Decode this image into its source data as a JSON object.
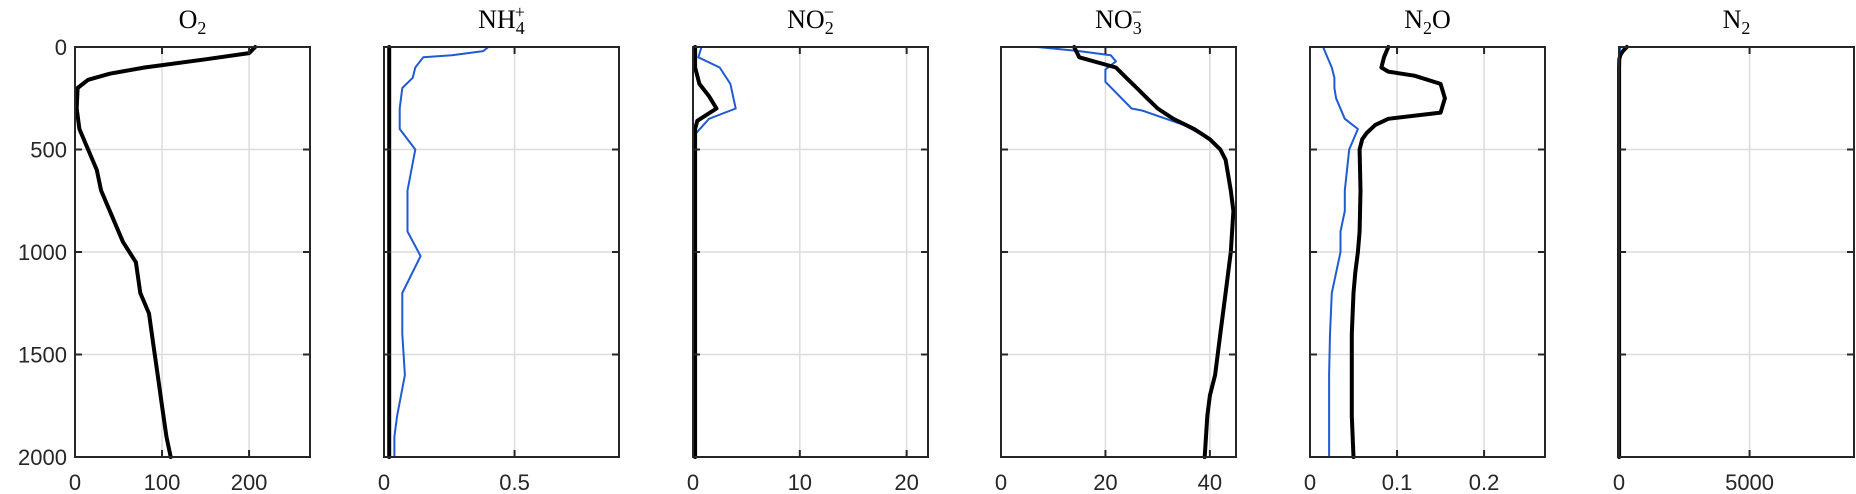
{
  "chart_data": [
    {
      "type": "line",
      "title": "O2",
      "xlim": [
        0,
        270
      ],
      "ylim": [
        0,
        2000
      ],
      "y_reversed": true,
      "grid": true,
      "xticks": [
        0,
        100,
        200
      ],
      "xtick_labels": [
        "0",
        "100",
        "200"
      ],
      "yticks": [
        0,
        500,
        1000,
        1500,
        2000
      ],
      "ytick_labels": [
        "0",
        "500",
        "1000",
        "1500",
        "2000"
      ],
      "series": [
        {
          "color": "#000000",
          "width": 4,
          "x": [
            207,
            200,
            150,
            80,
            40,
            15,
            3,
            2,
            5,
            15,
            25,
            30,
            35,
            45,
            55,
            70,
            75,
            85,
            90,
            95,
            100,
            105,
            110
          ],
          "y": [
            0,
            30,
            60,
            100,
            130,
            160,
            200,
            300,
            400,
            500,
            600,
            700,
            750,
            850,
            950,
            1050,
            1200,
            1300,
            1450,
            1600,
            1750,
            1900,
            2000
          ]
        }
      ]
    },
    {
      "type": "line",
      "title": "NH4+",
      "xlim": [
        0,
        0.9
      ],
      "ylim": [
        0,
        2000
      ],
      "y_reversed": true,
      "grid": true,
      "xticks": [
        0,
        0.5
      ],
      "xtick_labels": [
        "0",
        "0.5"
      ],
      "series": [
        {
          "color": "#1f5bd1",
          "width": 2,
          "x": [
            0.4,
            0.38,
            0.26,
            0.15,
            0.12,
            0.11,
            0.07,
            0.06,
            0.06,
            0.12,
            0.09,
            0.09,
            0.14,
            0.07,
            0.07,
            0.08,
            0.05,
            0.04,
            0.04
          ],
          "y": [
            0,
            20,
            40,
            50,
            100,
            150,
            200,
            300,
            400,
            500,
            700,
            900,
            1020,
            1200,
            1400,
            1600,
            1800,
            1900,
            2000
          ]
        },
        {
          "color": "#000000",
          "width": 4,
          "x": [
            0.02,
            0.02,
            0.02,
            0.02,
            0.02
          ],
          "y": [
            0,
            500,
            1000,
            1500,
            2000
          ]
        }
      ]
    },
    {
      "type": "line",
      "title": "NO2-",
      "xlim": [
        0,
        22
      ],
      "ylim": [
        0,
        2000
      ],
      "y_reversed": true,
      "grid": true,
      "xticks": [
        0,
        10,
        20
      ],
      "xtick_labels": [
        "0",
        "10",
        "20"
      ],
      "series": [
        {
          "color": "#1f5bd1",
          "width": 2,
          "x": [
            0.8,
            0.5,
            2.5,
            3.5,
            4.0,
            1.5,
            0.3,
            0.2,
            0.2,
            0.2
          ],
          "y": [
            0,
            50,
            100,
            180,
            300,
            350,
            420,
            500,
            1000,
            2000
          ]
        },
        {
          "color": "#000000",
          "width": 4,
          "x": [
            0.2,
            0.2,
            0.6,
            1.5,
            2.2,
            1.0,
            0.4,
            0.2,
            0.2,
            0.2,
            0.2
          ],
          "y": [
            0,
            100,
            180,
            240,
            300,
            340,
            360,
            400,
            500,
            1000,
            2000
          ]
        }
      ]
    },
    {
      "type": "line",
      "title": "NO3-",
      "xlim": [
        0,
        45
      ],
      "ylim": [
        0,
        2000
      ],
      "y_reversed": true,
      "grid": true,
      "xticks": [
        0,
        20,
        40
      ],
      "xtick_labels": [
        "0",
        "20",
        "40"
      ],
      "series": [
        {
          "color": "#1f5bd1",
          "width": 2,
          "x": [
            7,
            15,
            21,
            22,
            20,
            20,
            25,
            27,
            35,
            40
          ],
          "y": [
            0,
            20,
            40,
            70,
            110,
            170,
            300,
            310,
            380,
            450
          ]
        },
        {
          "color": "#000000",
          "width": 4,
          "x": [
            14,
            15,
            22,
            24,
            26,
            28,
            30,
            33,
            37,
            40,
            42,
            43,
            44,
            44.5,
            44,
            43,
            42,
            41,
            40,
            39.5,
            39
          ],
          "y": [
            0,
            50,
            100,
            150,
            200,
            250,
            300,
            350,
            400,
            450,
            500,
            550,
            700,
            800,
            1000,
            1200,
            1400,
            1600,
            1700,
            1800,
            2000
          ]
        }
      ]
    },
    {
      "type": "line",
      "title": "N2O",
      "xlim": [
        0,
        0.27
      ],
      "ylim": [
        0,
        2000
      ],
      "y_reversed": true,
      "grid": true,
      "xticks": [
        0,
        0.1,
        0.2
      ],
      "xtick_labels": [
        "0",
        "0.1",
        "0.2"
      ],
      "series": [
        {
          "color": "#1f5bd1",
          "width": 2,
          "x": [
            0.015,
            0.02,
            0.025,
            0.028,
            0.028,
            0.03,
            0.04,
            0.055,
            0.045,
            0.04,
            0.04,
            0.035,
            0.035,
            0.025,
            0.023,
            0.022,
            0.022
          ],
          "y": [
            0,
            50,
            100,
            150,
            200,
            250,
            350,
            400,
            500,
            700,
            800,
            900,
            1000,
            1200,
            1400,
            1600,
            2000
          ]
        },
        {
          "color": "#000000",
          "width": 4,
          "x": [
            0.09,
            0.085,
            0.082,
            0.09,
            0.12,
            0.15,
            0.155,
            0.15,
            0.09,
            0.075,
            0.065,
            0.06,
            0.057,
            0.058,
            0.057,
            0.055,
            0.052,
            0.05,
            0.048,
            0.048,
            0.048,
            0.05
          ],
          "y": [
            0,
            50,
            100,
            120,
            140,
            180,
            250,
            320,
            350,
            380,
            420,
            450,
            500,
            700,
            900,
            1000,
            1100,
            1200,
            1400,
            1600,
            1800,
            2000
          ]
        }
      ]
    },
    {
      "type": "line",
      "title": "N2",
      "xlim": [
        0,
        9000
      ],
      "ylim": [
        0,
        2000
      ],
      "y_reversed": true,
      "grid": true,
      "xticks": [
        0,
        5000
      ],
      "xtick_labels": [
        "0",
        "5000"
      ],
      "series": [
        {
          "color": "#1f5bd1",
          "width": 2,
          "x": [
            50,
            30,
            20,
            10,
            10
          ],
          "y": [
            0,
            20,
            40,
            60,
            2000
          ]
        },
        {
          "color": "#000000",
          "width": 4,
          "x": [
            300,
            150,
            50,
            10,
            5,
            5
          ],
          "y": [
            0,
            20,
            40,
            60,
            100,
            2000
          ]
        }
      ]
    }
  ]
}
